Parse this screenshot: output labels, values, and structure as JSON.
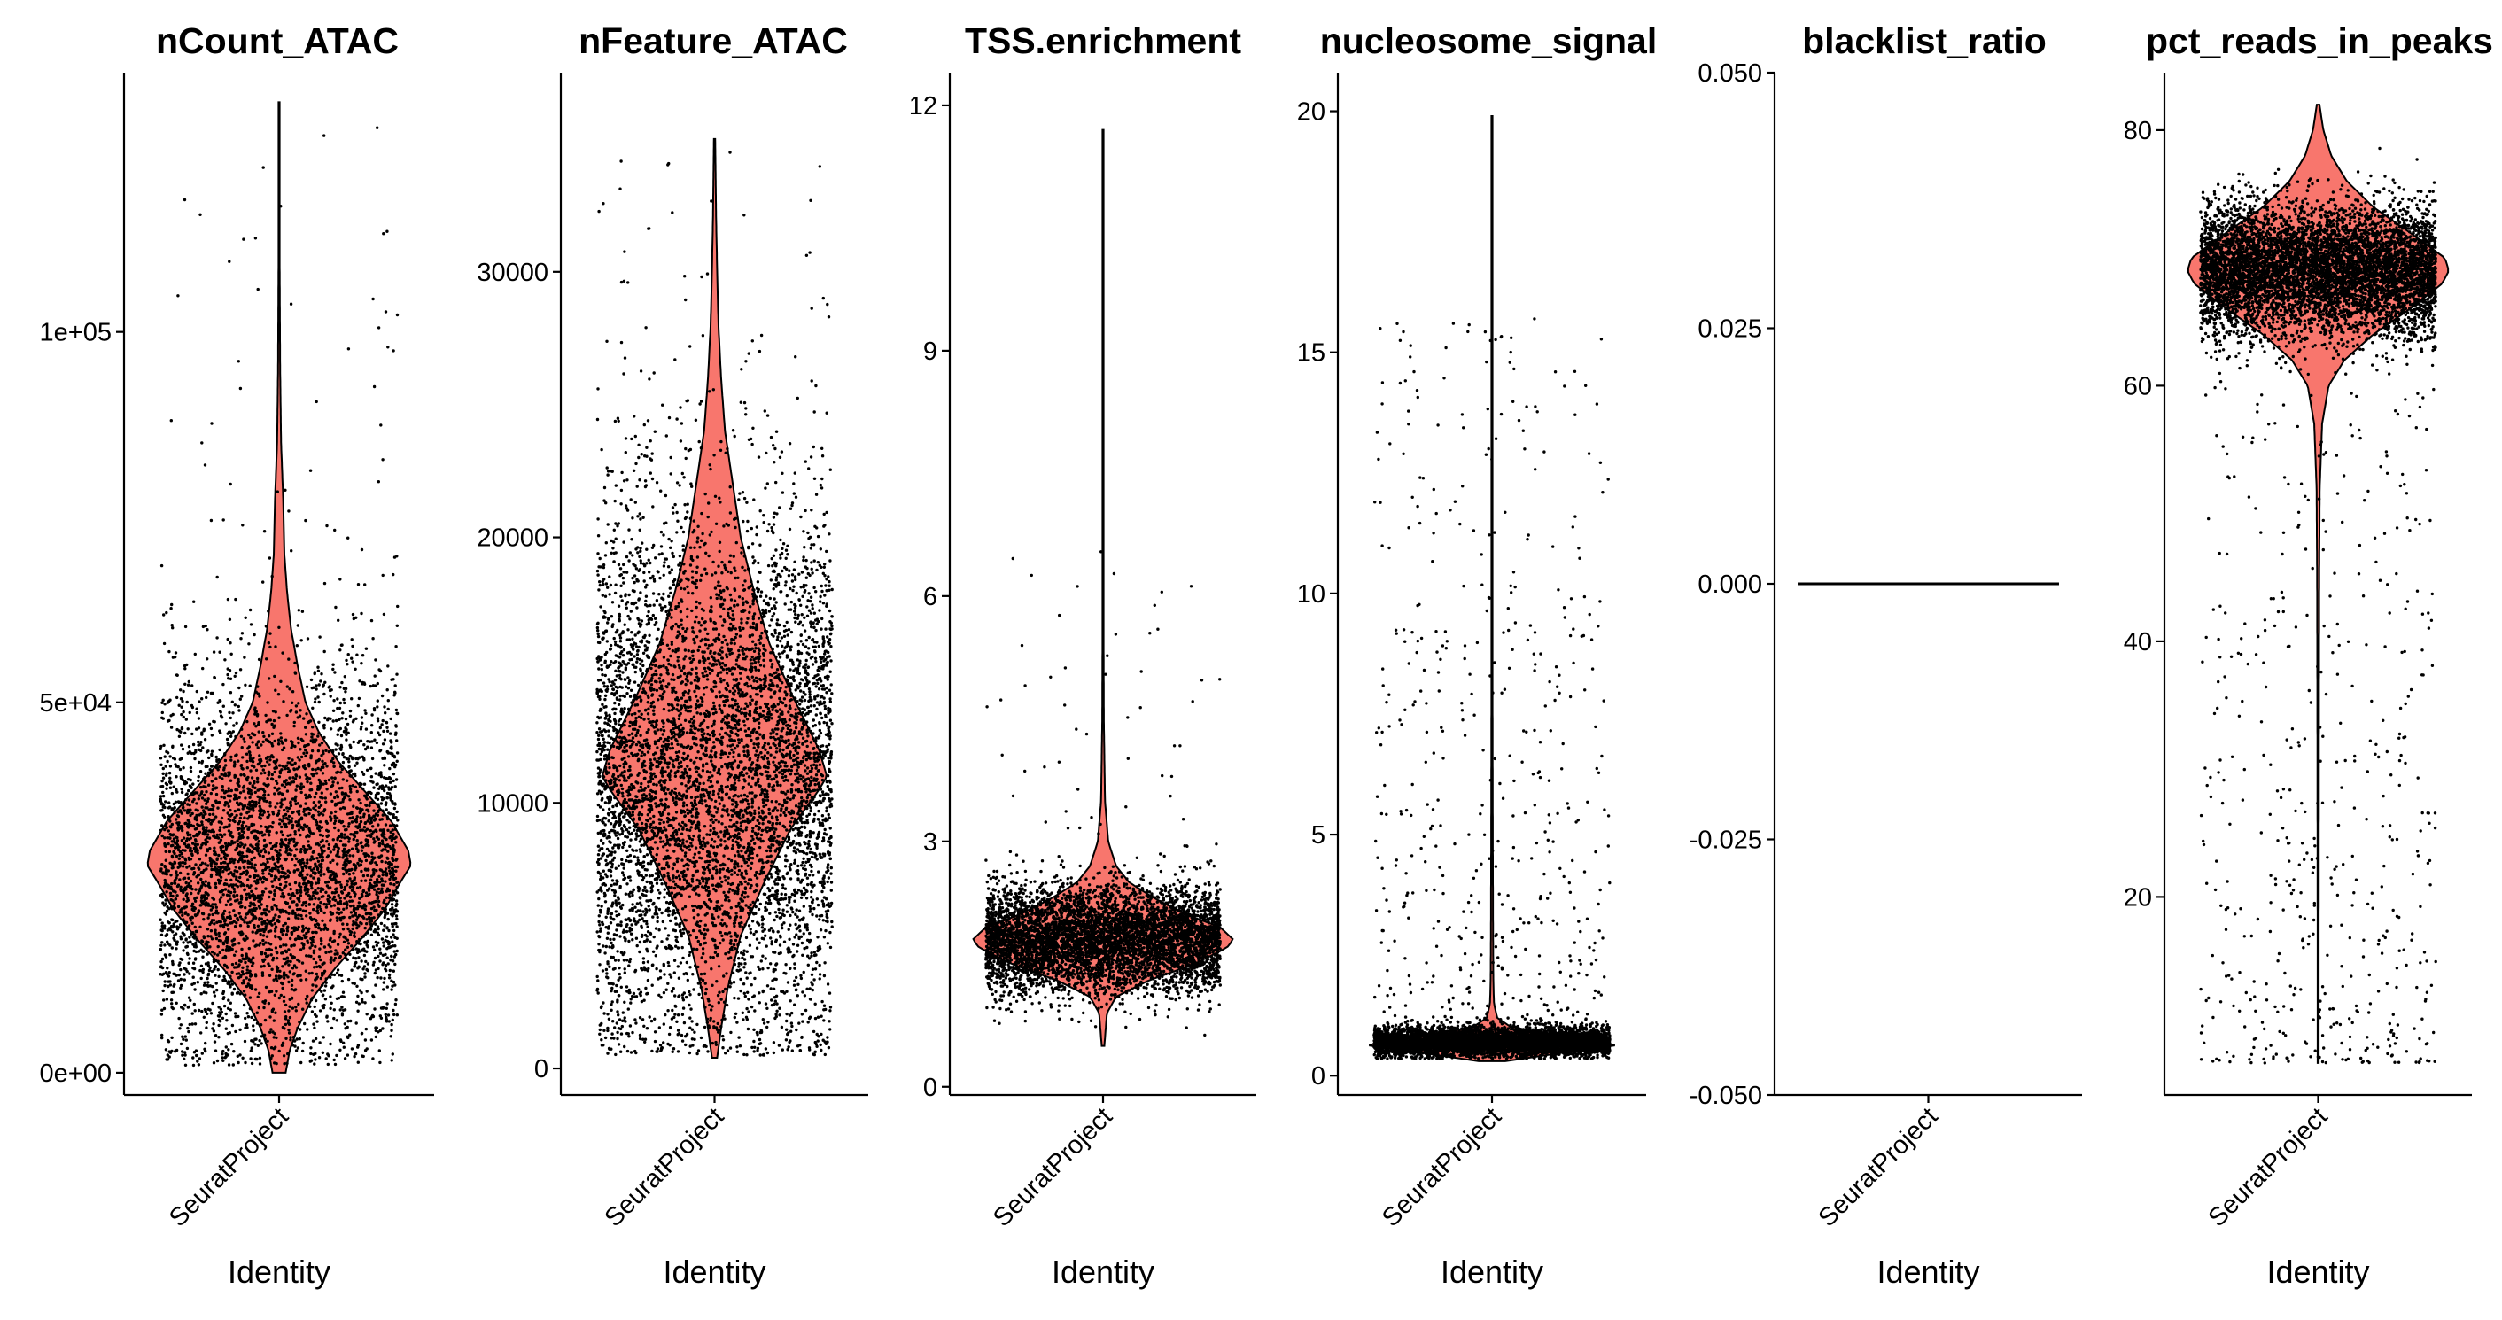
{
  "chart_data": [
    {
      "type": "violin",
      "title": "nCount_ATAC",
      "xlabel": "Identity",
      "categories": [
        "SeuratProject"
      ],
      "fill": "#F8766D",
      "ylim": [
        -3000,
        135000
      ],
      "y_ticks": [
        0,
        50000,
        100000
      ],
      "y_tick_labels": [
        "0e+00",
        "5e+04",
        "1e+05"
      ],
      "violin": {
        "min": 0,
        "max": 131000,
        "max_width": 0.9,
        "density": [
          [
            0,
            0.05
          ],
          [
            3000,
            0.08
          ],
          [
            6000,
            0.14
          ],
          [
            10000,
            0.25
          ],
          [
            14000,
            0.42
          ],
          [
            18000,
            0.62
          ],
          [
            22000,
            0.8
          ],
          [
            26000,
            0.93
          ],
          [
            28000,
            1.0
          ],
          [
            30000,
            0.98
          ],
          [
            34000,
            0.85
          ],
          [
            38000,
            0.65
          ],
          [
            42000,
            0.45
          ],
          [
            46000,
            0.3
          ],
          [
            50000,
            0.2
          ],
          [
            55000,
            0.14
          ],
          [
            60000,
            0.09
          ],
          [
            65000,
            0.06
          ],
          [
            70000,
            0.04
          ],
          [
            78000,
            0.03
          ],
          [
            85000,
            0.015
          ],
          [
            95000,
            0.008
          ],
          [
            110000,
            0.004
          ],
          [
            131000,
            0.002
          ]
        ]
      },
      "points": {
        "n": 4500,
        "center": 28000,
        "spread": 13000,
        "low": 1000,
        "outliers": 60,
        "outlier_range": [
          60000,
          131000
        ],
        "jitter": 0.9
      }
    },
    {
      "type": "violin",
      "title": "nFeature_ATAC",
      "xlabel": "Identity",
      "categories": [
        "SeuratProject"
      ],
      "fill": "#F8766D",
      "ylim": [
        -1000,
        37500
      ],
      "y_ticks": [
        0,
        10000,
        20000,
        30000
      ],
      "y_tick_labels": [
        "0",
        "10000",
        "20000",
        "30000"
      ],
      "violin": {
        "min": 400,
        "max": 35000,
        "max_width": 0.9,
        "density": [
          [
            400,
            0.02
          ],
          [
            1500,
            0.05
          ],
          [
            3000,
            0.1
          ],
          [
            5000,
            0.2
          ],
          [
            7000,
            0.38
          ],
          [
            9000,
            0.58
          ],
          [
            10500,
            0.8
          ],
          [
            11000,
            0.86
          ],
          [
            12000,
            0.8
          ],
          [
            14000,
            0.6
          ],
          [
            16000,
            0.42
          ],
          [
            18000,
            0.3
          ],
          [
            20000,
            0.2
          ],
          [
            22000,
            0.14
          ],
          [
            24000,
            0.08
          ],
          [
            26000,
            0.05
          ],
          [
            28000,
            0.03
          ],
          [
            30000,
            0.02
          ],
          [
            32000,
            0.012
          ],
          [
            35000,
            0.005
          ]
        ]
      },
      "points": {
        "n": 6000,
        "center": 11000,
        "spread": 5200,
        "low": 500,
        "outliers": 60,
        "outlier_range": [
          23000,
          35000
        ],
        "jitter": 0.9
      }
    },
    {
      "type": "violin",
      "title": "TSS.enrichment",
      "xlabel": "Identity",
      "categories": [
        "SeuratProject"
      ],
      "fill": "#F8766D",
      "ylim": [
        -0.1,
        12.4
      ],
      "y_ticks": [
        0,
        3,
        6,
        9,
        12
      ],
      "y_tick_labels": [
        "0",
        "3",
        "6",
        "9",
        "12"
      ],
      "violin": {
        "min": 0.5,
        "max": 11.7,
        "max_width": 0.9,
        "density": [
          [
            0.5,
            0.01
          ],
          [
            0.9,
            0.03
          ],
          [
            1.1,
            0.1
          ],
          [
            1.3,
            0.35
          ],
          [
            1.5,
            0.7
          ],
          [
            1.7,
            0.95
          ],
          [
            1.8,
            1.0
          ],
          [
            1.95,
            0.9
          ],
          [
            2.1,
            0.65
          ],
          [
            2.3,
            0.4
          ],
          [
            2.5,
            0.2
          ],
          [
            2.7,
            0.1
          ],
          [
            3.0,
            0.04
          ],
          [
            3.5,
            0.015
          ],
          [
            4.5,
            0.006
          ],
          [
            6,
            0.003
          ],
          [
            8,
            0.002
          ],
          [
            11.7,
            0.001
          ]
        ]
      },
      "points": {
        "n": 5500,
        "center": 1.8,
        "spread": 0.33,
        "low": 0.6,
        "outliers": 50,
        "outlier_range": [
          2.9,
          6.8
        ],
        "jitter": 0.9
      }
    },
    {
      "type": "violin",
      "title": "nucleosome_signal",
      "xlabel": "Identity",
      "categories": [
        "SeuratProject"
      ],
      "fill": "#F8766D",
      "ylim": [
        -0.4,
        20.8
      ],
      "y_ticks": [
        0,
        5,
        10,
        15,
        20
      ],
      "y_tick_labels": [
        "0",
        "5",
        "10",
        "15",
        "20"
      ],
      "violin": {
        "min": 0.3,
        "max": 19.9,
        "max_width": 0.9,
        "density": [
          [
            0.3,
            0.1
          ],
          [
            0.5,
            0.6
          ],
          [
            0.65,
            1.0
          ],
          [
            0.8,
            0.6
          ],
          [
            1.0,
            0.15
          ],
          [
            1.2,
            0.04
          ],
          [
            1.5,
            0.015
          ],
          [
            2,
            0.01
          ],
          [
            3,
            0.008
          ],
          [
            5,
            0.006
          ],
          [
            8,
            0.004
          ],
          [
            12,
            0.003
          ],
          [
            19.9,
            0.001
          ]
        ]
      },
      "points": {
        "n": 5000,
        "center": 0.7,
        "spread": 0.15,
        "low": 0.35,
        "outliers": 500,
        "outlier_range": [
          1.0,
          15.7
        ],
        "jitter": 0.9
      }
    },
    {
      "type": "violin",
      "title": "blacklist_ratio",
      "xlabel": "Identity",
      "categories": [
        "SeuratProject"
      ],
      "fill": "#F8766D",
      "ylim": [
        -0.05,
        0.05
      ],
      "y_ticks": [
        -0.05,
        -0.025,
        0,
        0.025,
        0.05
      ],
      "y_tick_labels": [
        "-0.050",
        "-0.025",
        "0.000",
        "0.025",
        "0.050"
      ],
      "violin": {
        "min": 0,
        "max": 0,
        "max_width": 0.9,
        "flat": true,
        "density": []
      },
      "points": {
        "n": 0
      }
    },
    {
      "type": "violin",
      "title": "pct_reads_in_peaks",
      "xlabel": "Identity",
      "categories": [
        "SeuratProject"
      ],
      "fill": "#F8766D",
      "ylim": [
        4.5,
        84.5
      ],
      "y_ticks": [
        20,
        40,
        60,
        80
      ],
      "y_tick_labels": [
        "20",
        "40",
        "60",
        "80"
      ],
      "violin": {
        "min": 7,
        "max": 82,
        "max_width": 0.9,
        "density": [
          [
            7,
            0.004
          ],
          [
            15,
            0.004
          ],
          [
            25,
            0.005
          ],
          [
            35,
            0.006
          ],
          [
            45,
            0.008
          ],
          [
            52,
            0.012
          ],
          [
            57,
            0.03
          ],
          [
            60,
            0.08
          ],
          [
            62,
            0.2
          ],
          [
            64,
            0.42
          ],
          [
            66,
            0.7
          ],
          [
            68,
            0.95
          ],
          [
            69,
            1.0
          ],
          [
            70,
            0.97
          ],
          [
            72,
            0.7
          ],
          [
            74,
            0.42
          ],
          [
            76,
            0.22
          ],
          [
            78,
            0.1
          ],
          [
            80,
            0.04
          ],
          [
            82,
            0.01
          ]
        ]
      },
      "points": {
        "n": 6500,
        "center": 69,
        "spread": 2.6,
        "low": 7,
        "outliers": 500,
        "outlier_range": [
          7,
          60
        ],
        "jitter": 0.9
      }
    }
  ]
}
